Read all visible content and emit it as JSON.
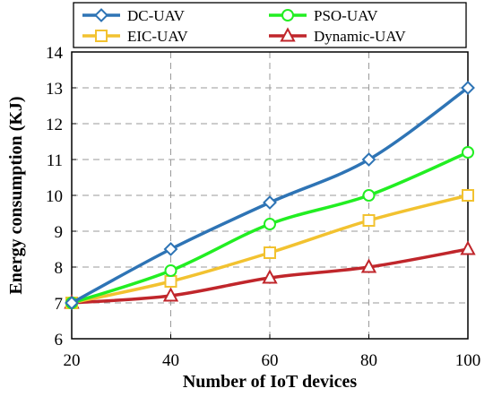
{
  "chart_data": {
    "type": "line",
    "xlabel": "Number  of IoT devices",
    "ylabel": "Energy consumption (KJ)",
    "x": [
      20,
      40,
      60,
      80,
      100
    ],
    "xlim": [
      20,
      100
    ],
    "ylim": [
      6,
      14
    ],
    "xticks": [
      20,
      40,
      60,
      80,
      100
    ],
    "yticks": [
      6,
      7,
      8,
      9,
      10,
      11,
      12,
      13,
      14
    ],
    "grid": true,
    "legend_position": "top",
    "series": [
      {
        "name": "DC-UAV",
        "values": [
          7.0,
          8.5,
          9.8,
          11.0,
          13.0
        ],
        "color": "#2e74b5",
        "marker": "diamond"
      },
      {
        "name": "PSO-UAV",
        "values": [
          7.0,
          7.9,
          9.2,
          10.0,
          11.2
        ],
        "color": "#22ee22",
        "marker": "circle"
      },
      {
        "name": "EIC-UAV",
        "values": [
          7.0,
          7.6,
          8.4,
          9.3,
          10.0
        ],
        "color": "#f2c230",
        "marker": "square"
      },
      {
        "name": "Dynamic-UAV",
        "values": [
          7.0,
          7.2,
          7.7,
          8.0,
          8.5
        ],
        "color": "#c0262b",
        "marker": "triangle"
      }
    ]
  }
}
